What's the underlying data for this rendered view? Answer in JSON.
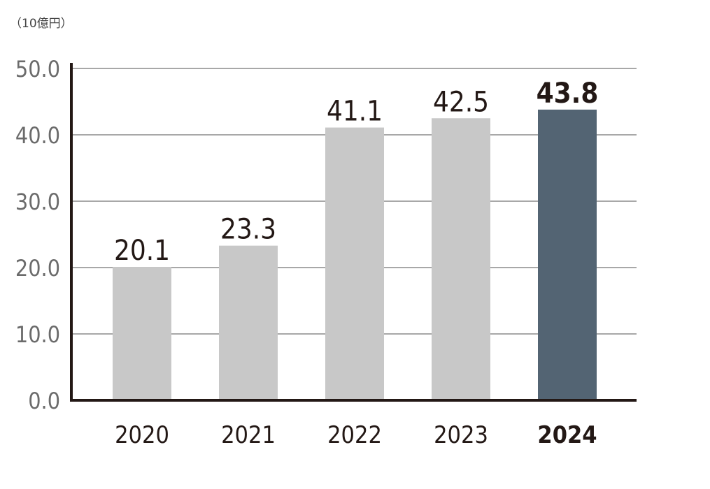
{
  "chart_data": {
    "type": "bar",
    "unit_label": "（10億円）",
    "categories": [
      "2020",
      "2021",
      "2022",
      "2023",
      "2024"
    ],
    "values": [
      20.1,
      23.3,
      41.1,
      42.5,
      43.8
    ],
    "value_labels": [
      "20.1",
      "23.3",
      "41.1",
      "42.5",
      "43.8"
    ],
    "highlight_index": 4,
    "ylim": [
      0,
      50
    ],
    "yticks": [
      0,
      10,
      20,
      30,
      40,
      50
    ],
    "ytick_labels": [
      "0.0",
      "10.0",
      "20.0",
      "30.0",
      "40.0",
      "50.0"
    ],
    "grid": true,
    "colors": {
      "bar": "#c8c8c8",
      "highlight_bar": "#536473",
      "grid": "#a8a8a8",
      "axis": "#231815"
    }
  }
}
